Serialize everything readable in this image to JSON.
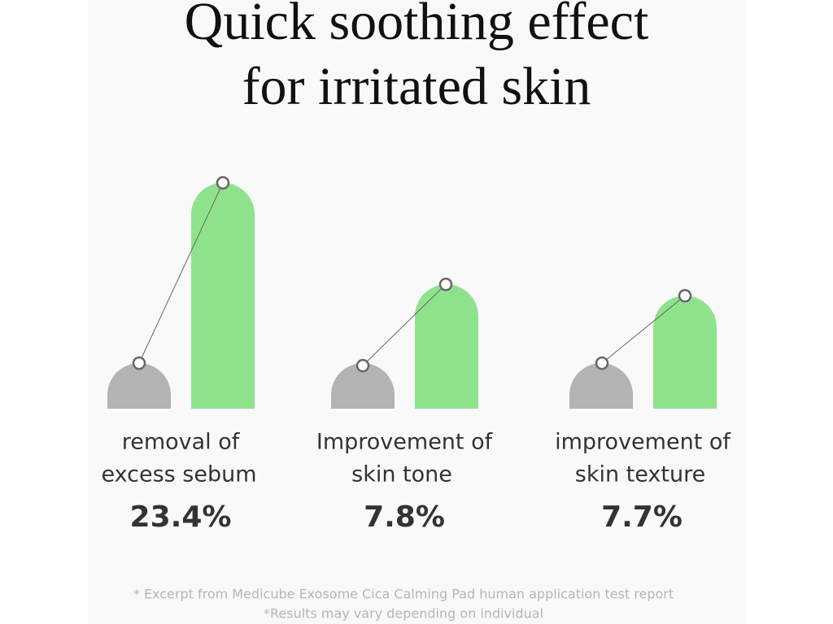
{
  "title": [
    "Quick soothing effect",
    "for irritated skin"
  ],
  "items": [
    {
      "label": [
        "removal of",
        "excess sebum"
      ],
      "value": "23.4%"
    },
    {
      "label": [
        "Improvement of",
        "skin tone"
      ],
      "value": "7.8%"
    },
    {
      "label": [
        "improvement of",
        "skin texture"
      ],
      "value": "7.7%"
    }
  ],
  "footnotes": [
    "* Excerpt from Medicube Exosome Cica Calming Pad human application test report",
    "*Results may vary depending on individual"
  ]
}
